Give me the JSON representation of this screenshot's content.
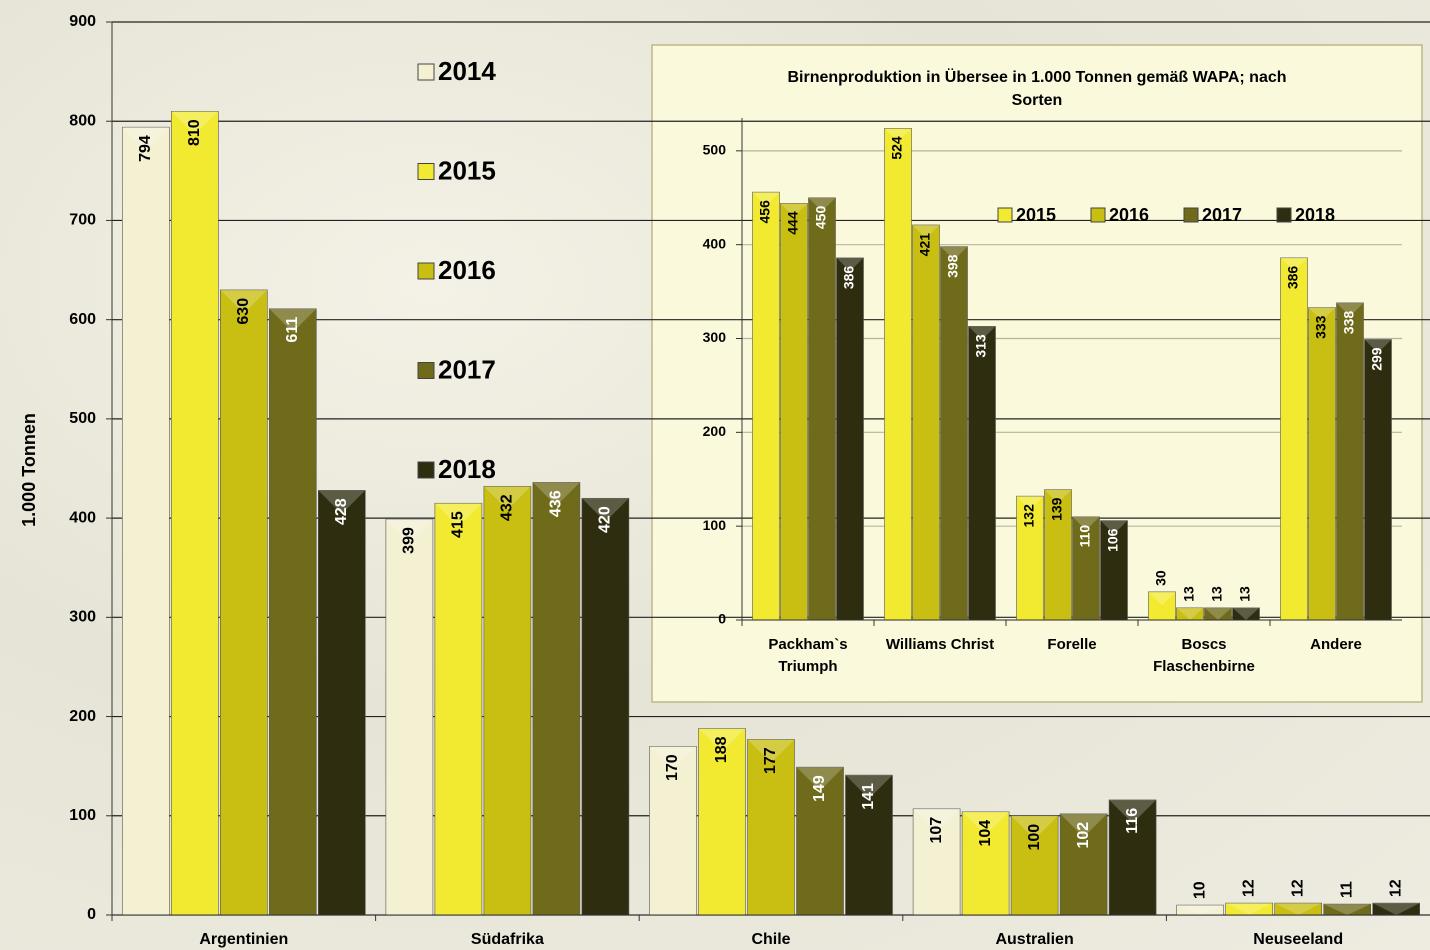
{
  "chart_data": [
    {
      "type": "bar",
      "y_label": "1.000 Tonnen",
      "categories": [
        "Argentinien",
        "Südafrika",
        "Chile",
        "Australien",
        "Neuseeland"
      ],
      "series": [
        {
          "name": "2014",
          "color": "#f4f0d2",
          "values": [
            794,
            399,
            170,
            107,
            10
          ]
        },
        {
          "name": "2015",
          "color": "#f2ea30",
          "values": [
            810,
            415,
            188,
            104,
            12
          ]
        },
        {
          "name": "2016",
          "color": "#c9be12",
          "values": [
            630,
            432,
            177,
            100,
            12
          ]
        },
        {
          "name": "2017",
          "color": "#6f6b1a",
          "values": [
            611,
            436,
            149,
            102,
            11
          ]
        },
        {
          "name": "2018",
          "color": "#2f2d10",
          "values": [
            428,
            420,
            141,
            116,
            12
          ]
        }
      ],
      "ylim": [
        0,
        900
      ],
      "yticks": [
        0,
        100,
        200,
        300,
        400,
        500,
        600,
        700,
        800,
        900
      ],
      "grid": true
    },
    {
      "type": "bar",
      "title": "Birnenproduktion in Übersee in 1.000 Tonnen gemäß WAPA; nach Sorten",
      "categories": [
        "Packham`s Triumph",
        "Williams Christ",
        "Forelle",
        "Boscs Flaschenbirne",
        "Andere"
      ],
      "series": [
        {
          "name": "2015",
          "color": "#f2ea30",
          "values": [
            456,
            524,
            132,
            30,
            386
          ]
        },
        {
          "name": "2016",
          "color": "#c9be12",
          "values": [
            444,
            421,
            139,
            13,
            333
          ]
        },
        {
          "name": "2017",
          "color": "#6f6b1a",
          "values": [
            450,
            398,
            110,
            13,
            338
          ]
        },
        {
          "name": "2018",
          "color": "#2f2d10",
          "values": [
            386,
            313,
            106,
            13,
            299
          ]
        }
      ],
      "ylim": [
        0,
        535
      ],
      "yticks": [
        0,
        100,
        200,
        300,
        400,
        500
      ],
      "grid": true
    }
  ]
}
